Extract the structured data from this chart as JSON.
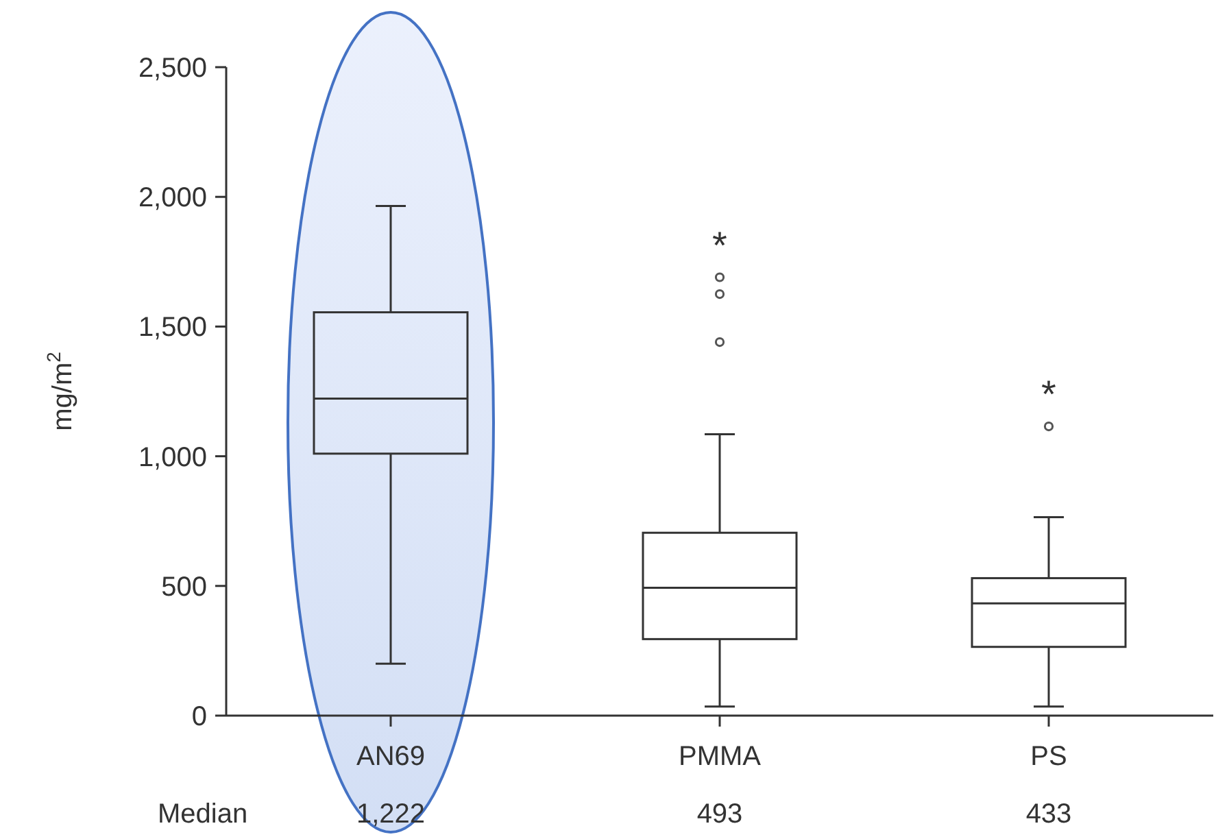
{
  "chart_data": {
    "type": "box",
    "ylabel": "mg/m$^{2}$",
    "categories": [
      "AN69",
      "PMMA",
      "PS"
    ],
    "boxes": [
      {
        "low": 200,
        "q1": 1010,
        "median": 1222,
        "q3": 1555,
        "high": 1965
      },
      {
        "low": 35,
        "q1": 295,
        "median": 493,
        "q3": 705,
        "high": 1085,
        "outliers": [
          1690,
          1625,
          1440
        ]
      },
      {
        "low": 35,
        "q1": 265,
        "median": 433,
        "q3": 530,
        "high": 765,
        "outliers": [
          1115
        ]
      }
    ],
    "ylim": [
      0,
      2500
    ],
    "yticks": [
      0,
      500,
      {
        "value": 1000,
        "label": "1,000"
      },
      {
        "value": 1500,
        "label": "1,500"
      },
      {
        "value": 2000,
        "label": "2,000"
      },
      {
        "value": 2500,
        "label": "2,500"
      }
    ],
    "grid": false,
    "annotations": [
      "Median",
      "1,222",
      "493",
      "433",
      "*",
      "*"
    ]
  }
}
